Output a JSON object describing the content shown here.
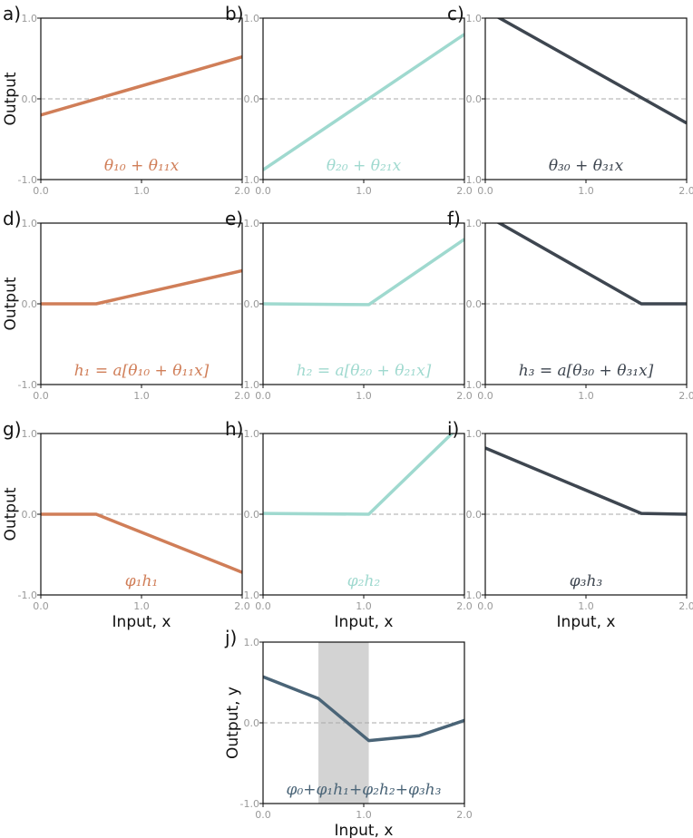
{
  "colors": {
    "orange": "#d07e58",
    "teal": "#9fd9cf",
    "dark": "#3e4650",
    "slate": "#4a6477"
  },
  "chart_data": [
    {
      "panel": "a)",
      "type": "line",
      "color_key": "orange",
      "formula": "θ₁₀ + θ₁₁x",
      "x": [
        0.0,
        2.0
      ],
      "y": [
        -0.2,
        0.52
      ],
      "xlim": [
        0,
        2
      ],
      "ylim": [
        -1,
        1
      ],
      "xticks": [
        "0.0",
        "1.0",
        "2.0"
      ],
      "yticks": [
        "-1.0",
        "0.0",
        "1.0"
      ],
      "ylabel": "Output",
      "xlabel": ""
    },
    {
      "panel": "b)",
      "type": "line",
      "color_key": "teal",
      "formula": "θ₂₀ + θ₂₁x",
      "x": [
        0.0,
        2.0
      ],
      "y": [
        -0.88,
        0.8
      ],
      "xlim": [
        0,
        2
      ],
      "ylim": [
        -1,
        1
      ],
      "xticks": [
        "0.0",
        "1.0",
        "2.0"
      ],
      "yticks": [
        "-1.0",
        "0.0",
        "1.0"
      ],
      "ylabel": "",
      "xlabel": ""
    },
    {
      "panel": "c)",
      "type": "line",
      "color_key": "dark",
      "formula": "θ₃₀ + θ₃₁x",
      "x": [
        0.0,
        2.0
      ],
      "y": [
        1.1,
        -0.3
      ],
      "xlim": [
        0,
        2
      ],
      "ylim": [
        -1,
        1
      ],
      "xticks": [
        "0.0",
        "1.0",
        "2.0"
      ],
      "yticks": [
        "-1.0",
        "0.0",
        "1.0"
      ],
      "ylabel": "",
      "xlabel": ""
    },
    {
      "panel": "d)",
      "type": "line",
      "color_key": "orange",
      "formula": "h₁ = a[θ₁₀ + θ₁₁x]",
      "x": [
        0.0,
        0.55,
        2.0
      ],
      "y": [
        0.0,
        0.0,
        0.41
      ],
      "xlim": [
        0,
        2
      ],
      "ylim": [
        -1,
        1
      ],
      "xticks": [
        "0.0",
        "1.0",
        "2.0"
      ],
      "yticks": [
        "-1.0",
        "0.0",
        "1.0"
      ],
      "ylabel": "Output",
      "xlabel": ""
    },
    {
      "panel": "e)",
      "type": "line",
      "color_key": "teal",
      "formula": "h₂ = a[θ₂₀ + θ₂₁x]",
      "x": [
        0.0,
        1.05,
        2.0
      ],
      "y": [
        0.0,
        -0.01,
        0.8
      ],
      "xlim": [
        0,
        2
      ],
      "ylim": [
        -1,
        1
      ],
      "xticks": [
        "0.0",
        "1.0",
        "2.0"
      ],
      "yticks": [
        "-1.0",
        "0.0",
        "1.0"
      ],
      "ylabel": "",
      "xlabel": ""
    },
    {
      "panel": "f)",
      "type": "line",
      "color_key": "dark",
      "formula": "h₃ = a[θ₃₀ + θ₃₁x]",
      "x": [
        0.0,
        1.55,
        2.0
      ],
      "y": [
        1.1,
        0.0,
        0.0
      ],
      "xlim": [
        0,
        2
      ],
      "ylim": [
        -1,
        1
      ],
      "xticks": [
        "0.0",
        "1.0",
        "2.0"
      ],
      "yticks": [
        "-1.0",
        "0.0",
        "1.0"
      ],
      "ylabel": "",
      "xlabel": ""
    },
    {
      "panel": "g)",
      "type": "line",
      "color_key": "orange",
      "formula": "φ₁h₁",
      "x": [
        0.0,
        0.55,
        2.0
      ],
      "y": [
        0.0,
        0.0,
        -0.72
      ],
      "xlim": [
        0,
        2
      ],
      "ylim": [
        -1,
        1
      ],
      "xticks": [
        "0.0",
        "1.0",
        "2.0"
      ],
      "yticks": [
        "-1.0",
        "0.0",
        "1.0"
      ],
      "ylabel": "Output",
      "xlabel": "Input, x"
    },
    {
      "panel": "h)",
      "type": "line",
      "color_key": "teal",
      "formula": "φ₂h₂",
      "x": [
        0.0,
        1.05,
        2.0
      ],
      "y": [
        0.01,
        0.0,
        1.15
      ],
      "xlim": [
        0,
        2
      ],
      "ylim": [
        -1,
        1
      ],
      "xticks": [
        "0.0",
        "1.0",
        "2.0"
      ],
      "yticks": [
        "-1.0",
        "0.0",
        "1.0"
      ],
      "ylabel": "",
      "xlabel": "Input, x"
    },
    {
      "panel": "i)",
      "type": "line",
      "color_key": "dark",
      "formula": "φ₃h₃",
      "x": [
        0.0,
        1.55,
        2.0
      ],
      "y": [
        0.82,
        0.01,
        0.0
      ],
      "xlim": [
        0,
        2
      ],
      "ylim": [
        -1,
        1
      ],
      "xticks": [
        "0.0",
        "1.0",
        "2.0"
      ],
      "yticks": [
        "-1.0",
        "0.0",
        "1.0"
      ],
      "ylabel": "",
      "xlabel": "Input, x"
    },
    {
      "panel": "j)",
      "type": "line",
      "color_key": "slate",
      "formula": "φ₀+φ₁h₁+φ₂h₂+φ₃h₃",
      "x": [
        0.0,
        0.55,
        1.05,
        1.55,
        2.0
      ],
      "y": [
        0.57,
        0.3,
        -0.22,
        -0.16,
        0.03
      ],
      "xlim": [
        0,
        2
      ],
      "ylim": [
        -1,
        1
      ],
      "shaded_region": [
        0.55,
        1.05
      ],
      "xticks": [
        "0.0",
        "1.0",
        "2.0"
      ],
      "yticks": [
        "-1.0",
        "0.0",
        "1.0"
      ],
      "ylabel": "Output, y",
      "xlabel": "Input, x"
    }
  ]
}
